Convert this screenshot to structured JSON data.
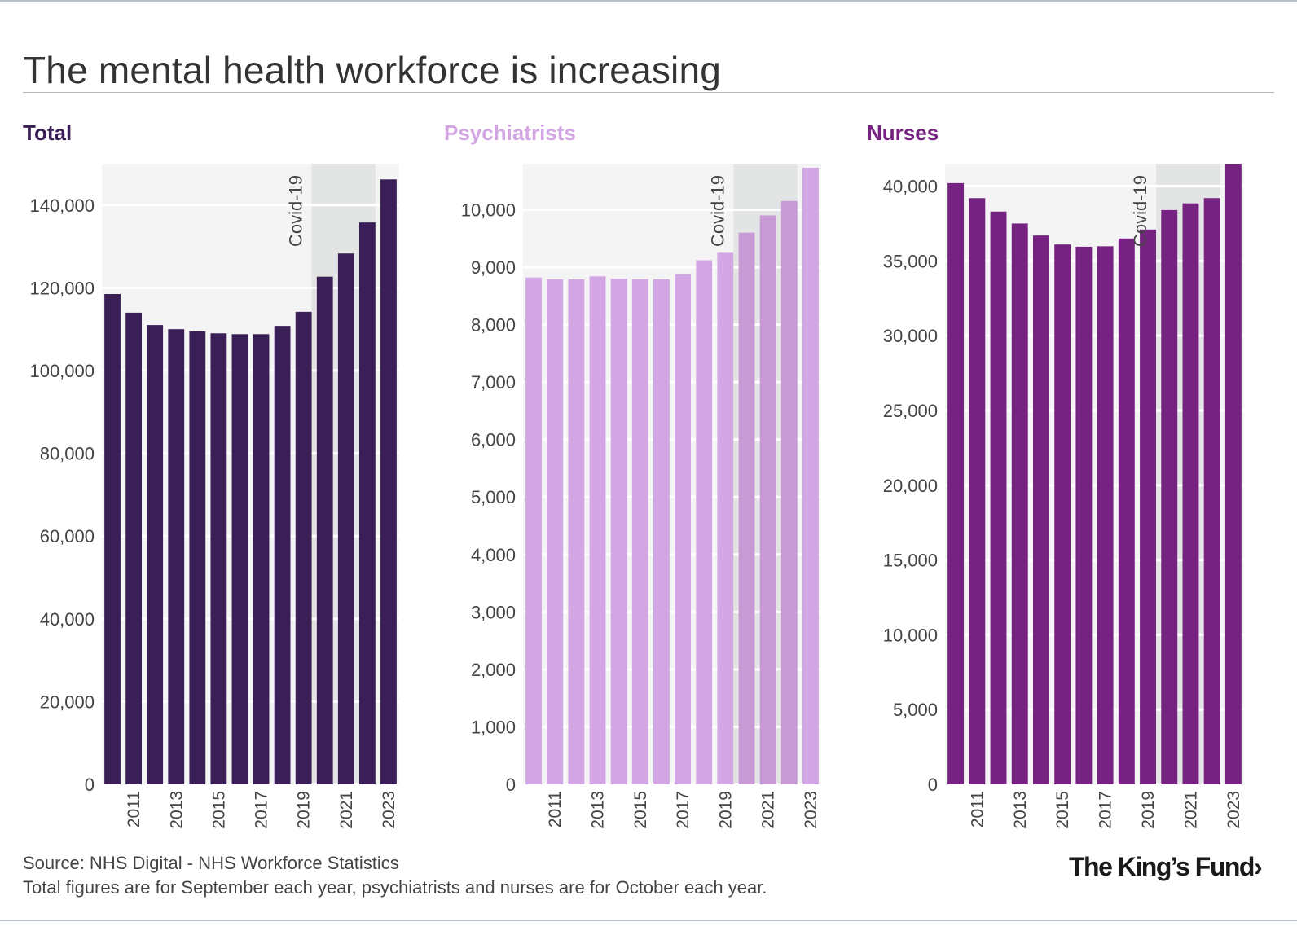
{
  "title": "The mental health workforce is increasing",
  "source_line1": "Source: NHS Digital - NHS Workforce Statistics",
  "source_line2": "Total figures are for September each year, psychiatrists and nurses are for October each year.",
  "logo_text": "The King’s Fund",
  "logo_chevron": "›",
  "colors": {
    "total": "#3a1f57",
    "psychiatrists": "#d2a6e3",
    "psychiatrists_covid": "#c89ad5",
    "nurses": "#762281",
    "plot_bg": "#f4f4f4",
    "covid_shade": "#e3e4e4",
    "gridline": "#ffffff",
    "axis_text": "#444444"
  },
  "chart_data": [
    {
      "id": "total",
      "type": "bar",
      "title": "Total",
      "categories": [
        "2010",
        "2011",
        "2012",
        "2013",
        "2014",
        "2015",
        "2016",
        "2017",
        "2018",
        "2019",
        "2020",
        "2021",
        "2022",
        "2023"
      ],
      "x_tick_labels": [
        "2011",
        "2013",
        "2015",
        "2017",
        "2019",
        "2021",
        "2023"
      ],
      "values": [
        118500,
        114000,
        111000,
        110000,
        109500,
        109000,
        108800,
        108800,
        110800,
        114200,
        122700,
        128300,
        135800,
        146200
      ],
      "ylim": [
        0,
        150000
      ],
      "yticks": [
        0,
        20000,
        40000,
        60000,
        80000,
        100000,
        120000,
        140000
      ],
      "ytick_labels": [
        "0",
        "20,000",
        "40,000",
        "60,000",
        "80,000",
        "100,000",
        "120,000",
        "140,000"
      ],
      "annotation": "Covid-19",
      "shaded_from": "2020",
      "shaded_to": "2022",
      "color_key": "total"
    },
    {
      "id": "psychiatrists",
      "type": "bar",
      "title": "Psychiatrists",
      "categories": [
        "2010",
        "2011",
        "2012",
        "2013",
        "2014",
        "2015",
        "2016",
        "2017",
        "2018",
        "2019",
        "2020",
        "2021",
        "2022",
        "2023"
      ],
      "x_tick_labels": [
        "2011",
        "2013",
        "2015",
        "2017",
        "2019",
        "2021",
        "2023"
      ],
      "values": [
        8820,
        8790,
        8790,
        8840,
        8800,
        8790,
        8790,
        8880,
        9120,
        9250,
        9600,
        9900,
        10150,
        10730
      ],
      "ylim": [
        0,
        10800
      ],
      "yticks": [
        0,
        1000,
        2000,
        3000,
        4000,
        5000,
        6000,
        7000,
        8000,
        9000,
        10000
      ],
      "ytick_labels": [
        "0",
        "1,000",
        "2,000",
        "3,000",
        "4,000",
        "5,000",
        "6,000",
        "7,000",
        "8,000",
        "9,000",
        "10,000"
      ],
      "annotation": "Covid-19",
      "shaded_from": "2020",
      "shaded_to": "2022",
      "color_key": "psychiatrists"
    },
    {
      "id": "nurses",
      "type": "bar",
      "title": "Nurses",
      "categories": [
        "2010",
        "2011",
        "2012",
        "2013",
        "2014",
        "2015",
        "2016",
        "2017",
        "2018",
        "2019",
        "2020",
        "2021",
        "2022",
        "2023"
      ],
      "x_tick_labels": [
        "2011",
        "2013",
        "2015",
        "2017",
        "2019",
        "2021",
        "2023"
      ],
      "values": [
        40200,
        39200,
        38300,
        37500,
        36700,
        36100,
        35950,
        35980,
        36500,
        37100,
        38400,
        38850,
        39200,
        41500
      ],
      "ylim": [
        0,
        41500
      ],
      "yticks": [
        0,
        5000,
        10000,
        15000,
        20000,
        25000,
        30000,
        35000,
        40000
      ],
      "ytick_labels": [
        "0",
        "5,000",
        "10,000",
        "15,000",
        "20,000",
        "25,000",
        "30,000",
        "35,000",
        "40,000"
      ],
      "annotation": "Covid-19",
      "shaded_from": "2020",
      "shaded_to": "2022",
      "color_key": "nurses"
    }
  ]
}
